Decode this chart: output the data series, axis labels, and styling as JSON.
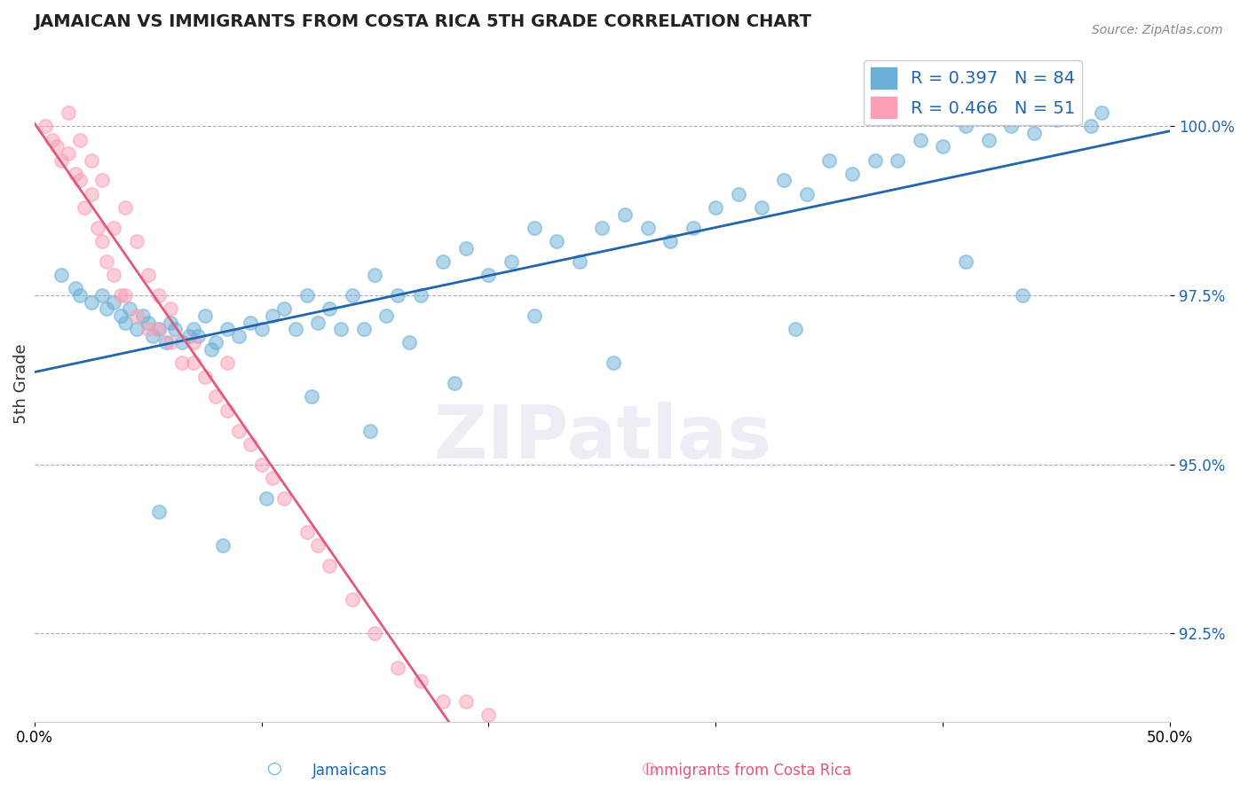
{
  "title": "JAMAICAN VS IMMIGRANTS FROM COSTA RICA 5TH GRADE CORRELATION CHART",
  "source": "Source: ZipAtlas.com",
  "xlabel_jamaicans": "Jamaicans",
  "xlabel_costarica": "Immigrants from Costa Rica",
  "ylabel": "5th Grade",
  "xlim": [
    0.0,
    50.0
  ],
  "ylim": [
    91.2,
    101.2
  ],
  "yticks": [
    92.5,
    95.0,
    97.5,
    100.0
  ],
  "ytick_labels": [
    "92.5%",
    "95.0%",
    "97.5%",
    "100.0%"
  ],
  "xticks": [
    0.0,
    10.0,
    20.0,
    30.0,
    40.0,
    50.0
  ],
  "xtick_labels": [
    "0.0%",
    "",
    "",
    "",
    "",
    "50.0%"
  ],
  "R_blue": 0.397,
  "N_blue": 84,
  "R_pink": 0.466,
  "N_pink": 51,
  "blue_color": "#6baed6",
  "pink_color": "#fa9fb5",
  "blue_line_color": "#2166ac",
  "pink_line_color": "#e05a7a",
  "watermark": "ZIPatlas",
  "blue_scatter_x": [
    1.2,
    1.8,
    2.0,
    2.5,
    3.0,
    3.2,
    3.5,
    3.8,
    4.0,
    4.2,
    4.5,
    4.8,
    5.0,
    5.2,
    5.5,
    5.8,
    6.0,
    6.2,
    6.5,
    6.8,
    7.0,
    7.2,
    7.5,
    7.8,
    8.0,
    8.5,
    9.0,
    9.5,
    10.0,
    10.5,
    11.0,
    11.5,
    12.0,
    12.5,
    13.0,
    13.5,
    14.0,
    14.5,
    15.0,
    15.5,
    16.0,
    17.0,
    18.0,
    19.0,
    20.0,
    21.0,
    22.0,
    23.0,
    24.0,
    25.0,
    26.0,
    27.0,
    28.0,
    29.0,
    30.0,
    31.0,
    32.0,
    33.0,
    34.0,
    35.0,
    36.0,
    37.0,
    38.0,
    39.0,
    40.0,
    41.0,
    42.0,
    43.0,
    44.0,
    45.0,
    46.5,
    47.0,
    5.5,
    10.2,
    8.3,
    18.5,
    25.5,
    33.5,
    41.0,
    43.5,
    12.2,
    14.8,
    16.5,
    22.0
  ],
  "blue_scatter_y": [
    97.8,
    97.6,
    97.5,
    97.4,
    97.5,
    97.3,
    97.4,
    97.2,
    97.1,
    97.3,
    97.0,
    97.2,
    97.1,
    96.9,
    97.0,
    96.8,
    97.1,
    97.0,
    96.8,
    96.9,
    97.0,
    96.9,
    97.2,
    96.7,
    96.8,
    97.0,
    96.9,
    97.1,
    97.0,
    97.2,
    97.3,
    97.0,
    97.5,
    97.1,
    97.3,
    97.0,
    97.5,
    97.0,
    97.8,
    97.2,
    97.5,
    97.5,
    98.0,
    98.2,
    97.8,
    98.0,
    98.5,
    98.3,
    98.0,
    98.5,
    98.7,
    98.5,
    98.3,
    98.5,
    98.8,
    99.0,
    98.8,
    99.2,
    99.0,
    99.5,
    99.3,
    99.5,
    99.5,
    99.8,
    99.7,
    100.0,
    99.8,
    100.0,
    99.9,
    100.1,
    100.0,
    100.2,
    94.3,
    94.5,
    93.8,
    96.2,
    96.5,
    97.0,
    98.0,
    97.5,
    96.0,
    95.5,
    96.8,
    97.2
  ],
  "pink_scatter_x": [
    0.5,
    0.8,
    1.0,
    1.2,
    1.5,
    1.8,
    2.0,
    2.2,
    2.5,
    2.8,
    3.0,
    3.2,
    3.5,
    3.8,
    4.0,
    4.5,
    5.0,
    5.5,
    6.0,
    6.5,
    7.0,
    7.5,
    8.0,
    8.5,
    9.0,
    9.5,
    10.0,
    10.5,
    11.0,
    12.0,
    13.0,
    14.0,
    15.0,
    16.0,
    17.0,
    18.0,
    19.0,
    20.0,
    1.5,
    2.0,
    2.5,
    3.0,
    3.5,
    4.0,
    4.5,
    5.0,
    5.5,
    6.0,
    7.0,
    8.5,
    12.5
  ],
  "pink_scatter_y": [
    100.0,
    99.8,
    99.7,
    99.5,
    99.6,
    99.3,
    99.2,
    98.8,
    99.0,
    98.5,
    98.3,
    98.0,
    97.8,
    97.5,
    97.5,
    97.2,
    97.0,
    97.0,
    96.8,
    96.5,
    96.5,
    96.3,
    96.0,
    95.8,
    95.5,
    95.3,
    95.0,
    94.8,
    94.5,
    94.0,
    93.5,
    93.0,
    92.5,
    92.0,
    91.8,
    91.5,
    91.5,
    91.3,
    100.2,
    99.8,
    99.5,
    99.2,
    98.5,
    98.8,
    98.3,
    97.8,
    97.5,
    97.3,
    96.8,
    96.5,
    93.8
  ]
}
